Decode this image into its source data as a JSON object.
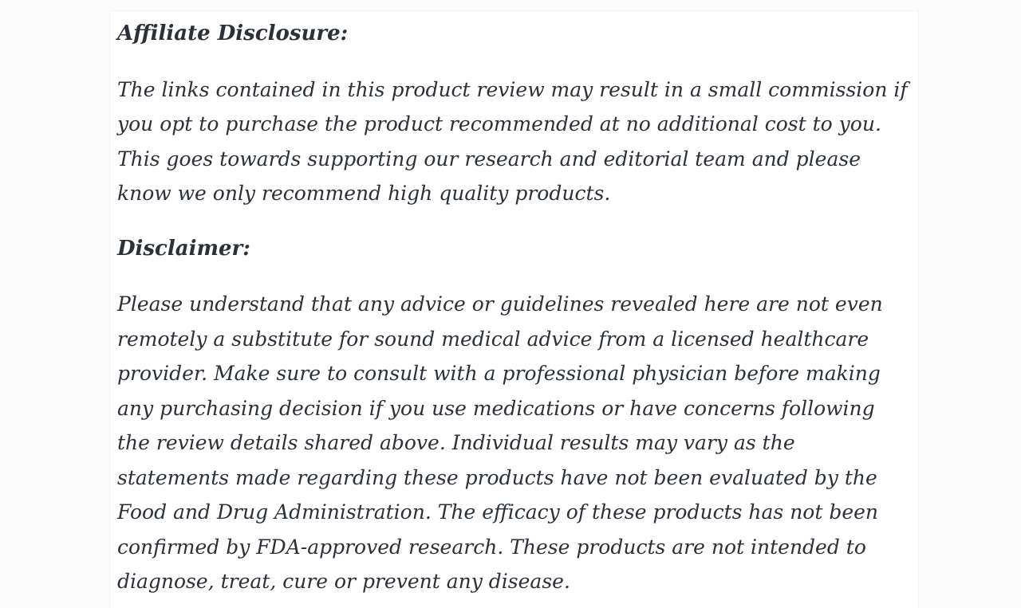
{
  "page": {
    "background_color": "#fcfcfc",
    "card_background": "#ffffff",
    "card_border_color": "#f2f2f2",
    "text_color": "#2b3137"
  },
  "content": {
    "affiliate": {
      "heading": "Affiliate Disclosure:",
      "body": "The links contained in this product review may result in a small commission if you opt to purchase the product recommended at no additional cost to you. This goes towards supporting our research and editorial team and please know we only recommend high quality products."
    },
    "disclaimer": {
      "heading": "Disclaimer:",
      "body": "Please understand that any advice or guidelines revealed here are not even remotely a substitute for sound medical advice from a licensed healthcare provider. Make sure to consult with a professional physician before making any purchasing decision if you use medications or have concerns following the review details shared above. Individual results may vary as the statements made regarding these products have not been evaluated by the Food and Drug Administration. The efficacy of these products has not been confirmed by FDA-approved research. These products are not intended to diagnose, treat, cure or prevent any disease."
    }
  }
}
